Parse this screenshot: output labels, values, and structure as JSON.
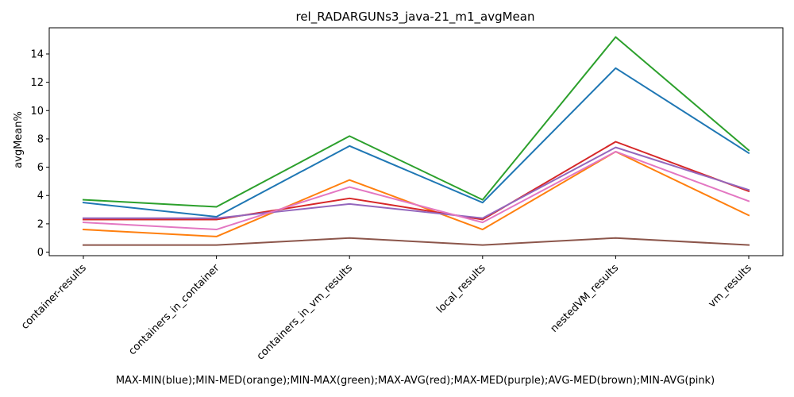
{
  "chart_data": {
    "type": "line",
    "title": "rel_RADARGUNs3_java-21_m1_avgMean",
    "xlabel": "MAX-MIN(blue);MIN-MED(orange);MIN-MAX(green);MAX-AVG(red);MAX-MED(purple);AVG-MED(brown);MIN-AVG(pink)",
    "ylabel": "avgMean%",
    "categories": [
      "container-results",
      "containers_in_container",
      "containers_in_vm_results",
      "local_results",
      "nestedVM_results",
      "vm_results"
    ],
    "ylim": [
      -0.25,
      15.85
    ],
    "yticks": [
      0,
      2,
      4,
      6,
      8,
      10,
      12,
      14
    ],
    "grid": false,
    "series": [
      {
        "color": "#1f77b4",
        "values": [
          3.5,
          2.5,
          7.5,
          3.5,
          13.0,
          7.0
        ]
      },
      {
        "color": "#ff7f0e",
        "values": [
          1.6,
          1.1,
          5.1,
          1.6,
          7.1,
          2.6
        ]
      },
      {
        "color": "#2ca02c",
        "values": [
          3.7,
          3.2,
          8.2,
          3.7,
          15.2,
          7.2
        ]
      },
      {
        "color": "#d62728",
        "values": [
          2.3,
          2.3,
          3.8,
          2.3,
          7.8,
          4.3
        ]
      },
      {
        "color": "#9467bd",
        "values": [
          2.4,
          2.4,
          3.4,
          2.4,
          7.4,
          4.4
        ]
      },
      {
        "color": "#8c564b",
        "values": [
          0.5,
          0.5,
          1.0,
          0.5,
          1.0,
          0.5
        ]
      },
      {
        "color": "#e377c2",
        "values": [
          2.1,
          1.6,
          4.6,
          2.1,
          7.1,
          3.6
        ]
      }
    ]
  }
}
